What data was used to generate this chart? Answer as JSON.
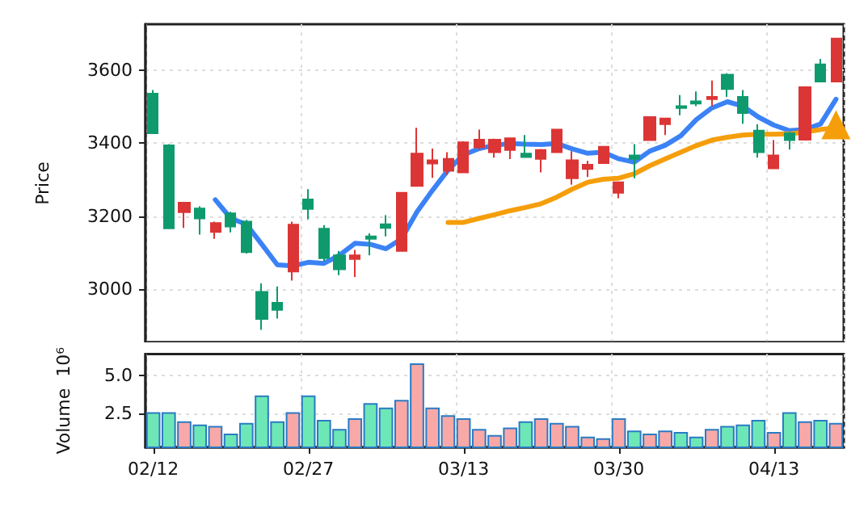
{
  "chart_data": [
    {
      "type": "candlestick",
      "ylabel": "Price",
      "categories": [
        null,
        null,
        null,
        null,
        null,
        null,
        null,
        null,
        null,
        null,
        null,
        null,
        null,
        null,
        null,
        null,
        null,
        null,
        null,
        null,
        null,
        null,
        null,
        null,
        null,
        null,
        null,
        null,
        null,
        null,
        null,
        null,
        null,
        null,
        null,
        null,
        null,
        null,
        null,
        null,
        null,
        null,
        null,
        null,
        null
      ],
      "ohlc": [
        [
          3535,
          3545,
          3427,
          3427
        ],
        [
          3394,
          3397,
          3166,
          3167
        ],
        [
          3211,
          3237,
          3168,
          3237
        ],
        [
          3221,
          3227,
          3150,
          3194
        ],
        [
          3157,
          3185,
          3138,
          3181
        ],
        [
          3208,
          3212,
          3156,
          3172
        ],
        [
          3185,
          3190,
          3098,
          3102
        ],
        [
          2993,
          3016,
          2889,
          2919
        ],
        [
          2963,
          3008,
          2920,
          2944
        ],
        [
          3049,
          3185,
          3024,
          3177
        ],
        [
          3246,
          3274,
          3191,
          3220
        ],
        [
          3166,
          3176,
          3076,
          3085
        ],
        [
          3093,
          3105,
          3039,
          3055
        ],
        [
          3083,
          3108,
          3034,
          3093
        ],
        [
          3145,
          3153,
          3093,
          3138
        ],
        [
          3178,
          3203,
          3145,
          3168
        ],
        [
          3105,
          3264,
          3105,
          3264
        ],
        [
          3283,
          3442,
          3283,
          3371
        ],
        [
          3344,
          3385,
          3305,
          3353
        ],
        [
          3324,
          3375,
          3313,
          3357
        ],
        [
          3320,
          3405,
          3318,
          3402
        ],
        [
          3388,
          3437,
          3382,
          3409
        ],
        [
          3375,
          3412,
          3360,
          3409
        ],
        [
          3381,
          3415,
          3356,
          3413
        ],
        [
          3371,
          3422,
          3362,
          3362
        ],
        [
          3357,
          3384,
          3320,
          3381
        ],
        [
          3375,
          3437,
          3375,
          3437
        ],
        [
          3304,
          3378,
          3286,
          3353
        ],
        [
          3329,
          3351,
          3307,
          3341
        ],
        [
          3345,
          3392,
          3345,
          3390
        ],
        [
          3264,
          3293,
          3249,
          3293
        ],
        [
          3366,
          3397,
          3304,
          3357
        ],
        [
          3408,
          3471,
          3408,
          3471
        ],
        [
          3452,
          3467,
          3422,
          3467
        ],
        [
          3501,
          3531,
          3476,
          3496
        ],
        [
          3514,
          3541,
          3501,
          3508
        ],
        [
          3520,
          3571,
          3501,
          3526
        ],
        [
          3587,
          3591,
          3526,
          3548
        ],
        [
          3526,
          3545,
          3453,
          3482
        ],
        [
          3434,
          3452,
          3360,
          3375
        ],
        [
          3331,
          3408,
          3331,
          3366
        ],
        [
          3427,
          3430,
          3382,
          3408
        ],
        [
          3409,
          3553,
          3409,
          3553
        ],
        [
          3615,
          3630,
          3568,
          3568
        ],
        [
          3568,
          3686,
          3568,
          3686
        ]
      ],
      "colors": [
        "#0f9a6e",
        "#0f9a6e",
        "#dc3535",
        "#0f9a6e",
        "#dc3535",
        "#0f9a6e",
        "#0f9a6e",
        "#0f9a6e",
        "#0f9a6e",
        "#dc3535",
        "#0f9a6e",
        "#0f9a6e",
        "#0f9a6e",
        "#dc3535",
        "#0f9a6e",
        "#0f9a6e",
        "#dc3535",
        "#dc3535",
        "#dc3535",
        "#dc3535",
        "#dc3535",
        "#dc3535",
        "#dc3535",
        "#dc3535",
        "#0f9a6e",
        "#dc3535",
        "#dc3535",
        "#dc3535",
        "#dc3535",
        "#dc3535",
        "#dc3535",
        "#0f9a6e",
        "#dc3535",
        "#dc3535",
        "#0f9a6e",
        "#0f9a6e",
        "#dc3535",
        "#0f9a6e",
        "#0f9a6e",
        "#0f9a6e",
        "#dc3535",
        "#0f9a6e",
        "#dc3535",
        "#0f9a6e",
        "#dc3535"
      ],
      "series": [
        {
          "type": "line",
          "color": "#3b82f6",
          "marker": "none",
          "values": [
            null,
            null,
            null,
            null,
            3245,
            3194,
            3178,
            3123,
            3067,
            3064,
            3074,
            3071,
            3093,
            3126,
            3123,
            3111,
            3138,
            3212,
            3271,
            3326,
            3368,
            3385,
            3394,
            3399,
            3397,
            3396,
            3399,
            3384,
            3372,
            3375,
            3357,
            3348,
            3378,
            3394,
            3420,
            3464,
            3496,
            3513,
            3501,
            3471,
            3449,
            3434,
            3437,
            3452,
            3520
          ]
        },
        {
          "type": "line",
          "color": "#f59e0b",
          "marker": "none",
          "values": [
            null,
            null,
            null,
            null,
            null,
            null,
            null,
            null,
            null,
            null,
            null,
            null,
            null,
            null,
            null,
            null,
            null,
            null,
            null,
            3183,
            3183,
            3194,
            3204,
            3215,
            3224,
            3234,
            3252,
            3274,
            3293,
            3301,
            3304,
            3316,
            3338,
            3357,
            3375,
            3393,
            3408,
            3416,
            3422,
            3424,
            3424,
            3425,
            3430,
            3437,
            3442
          ]
        },
        {
          "type": "scatter",
          "color": "#f59e0b",
          "marker": "triangle",
          "values": [
            null,
            null,
            null,
            null,
            null,
            null,
            null,
            null,
            null,
            null,
            null,
            null,
            null,
            null,
            null,
            null,
            null,
            null,
            null,
            null,
            null,
            null,
            null,
            null,
            null,
            null,
            null,
            null,
            null,
            null,
            null,
            null,
            null,
            null,
            null,
            null,
            null,
            null,
            null,
            null,
            null,
            null,
            null,
            null,
            3450
          ]
        }
      ],
      "ylim": [
        2855,
        3725
      ],
      "yticks": [
        3000,
        3200,
        3400,
        3600
      ],
      "grid": true,
      "tick_labels": "y"
    },
    {
      "type": "bar",
      "ylabel": "Volume  10⁶",
      "categories": [
        "02/12",
        null,
        null,
        null,
        null,
        null,
        null,
        null,
        null,
        null,
        "02/27",
        null,
        null,
        null,
        null,
        null,
        null,
        null,
        null,
        null,
        "03/13",
        null,
        null,
        null,
        null,
        null,
        null,
        null,
        null,
        null,
        "03/30",
        null,
        null,
        null,
        null,
        null,
        null,
        null,
        null,
        null,
        "04/13",
        null,
        null,
        null,
        null
      ],
      "values": [
        2.6,
        2.6,
        2.0,
        1.8,
        1.7,
        1.2,
        1.9,
        3.7,
        2.0,
        2.6,
        3.7,
        2.1,
        1.5,
        2.2,
        3.2,
        2.9,
        3.4,
        5.8,
        2.9,
        2.4,
        2.2,
        1.5,
        1.1,
        1.6,
        2.0,
        2.2,
        1.9,
        1.7,
        1.0,
        0.9,
        2.2,
        1.4,
        1.2,
        1.4,
        1.3,
        1.0,
        1.5,
        1.7,
        1.8,
        2.1,
        1.3,
        2.6,
        2.0,
        2.1,
        1.9
      ],
      "colors": [
        "#6ee7b7",
        "#6ee7b7",
        "#f9a8a8",
        "#6ee7b7",
        "#f9a8a8",
        "#6ee7b7",
        "#6ee7b7",
        "#6ee7b7",
        "#6ee7b7",
        "#f9a8a8",
        "#6ee7b7",
        "#6ee7b7",
        "#6ee7b7",
        "#f9a8a8",
        "#6ee7b7",
        "#6ee7b7",
        "#f9a8a8",
        "#f9a8a8",
        "#f9a8a8",
        "#f9a8a8",
        "#f9a8a8",
        "#f9a8a8",
        "#f9a8a8",
        "#f9a8a8",
        "#6ee7b7",
        "#f9a8a8",
        "#f9a8a8",
        "#f9a8a8",
        "#f9a8a8",
        "#f9a8a8",
        "#f9a8a8",
        "#6ee7b7",
        "#f9a8a8",
        "#f9a8a8",
        "#6ee7b7",
        "#6ee7b7",
        "#f9a8a8",
        "#6ee7b7",
        "#6ee7b7",
        "#6ee7b7",
        "#f9a8a8",
        "#6ee7b7",
        "#f9a8a8",
        "#6ee7b7",
        "#f9a8a8"
      ],
      "ylim": [
        0.3,
        6.4
      ],
      "yticks": [
        {
          "value": 2.5,
          "label": "2.5"
        },
        {
          "value": 5,
          "label": "5.0"
        }
      ],
      "grid": true
    }
  ]
}
